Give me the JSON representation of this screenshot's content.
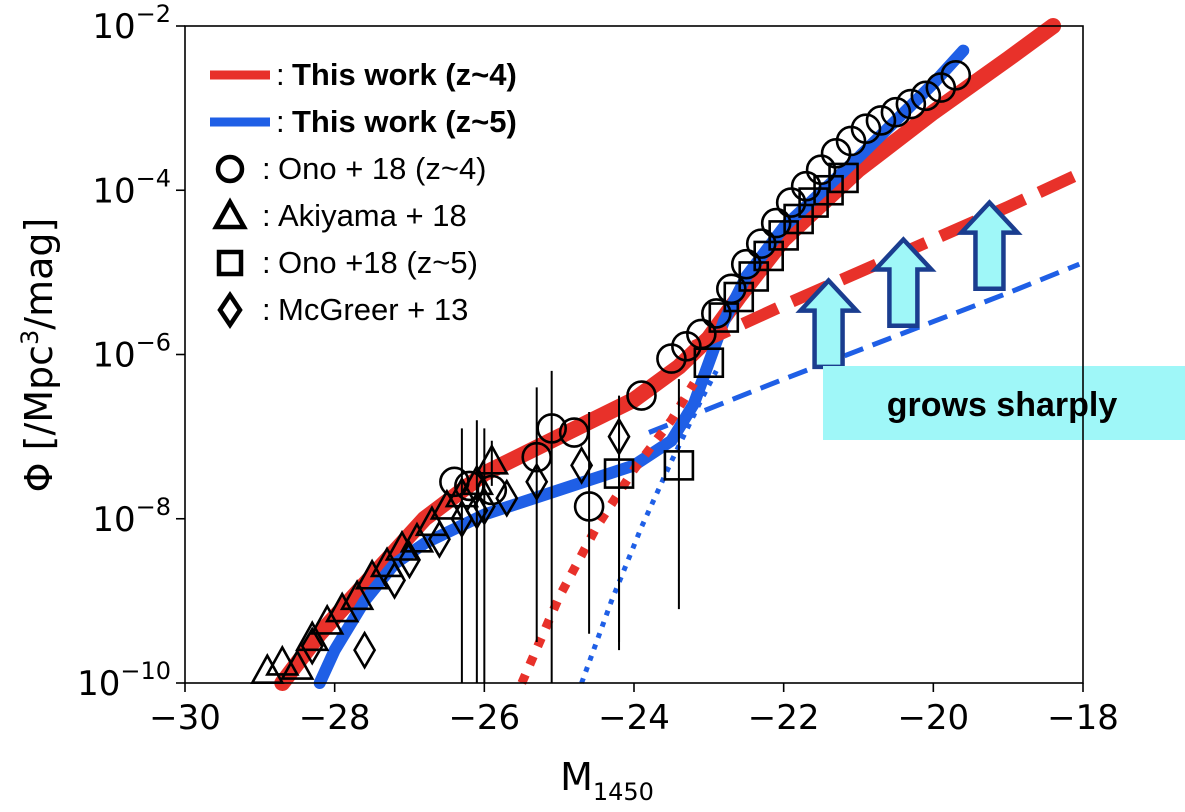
{
  "chart_data": {
    "type": "scatter",
    "title": "",
    "xlabel": {
      "main": "M",
      "sub": "1450"
    },
    "ylabel": {
      "pre": "Φ [/Mpc",
      "sup": "3",
      "post": "/mag]"
    },
    "xlim": [
      -30,
      -18
    ],
    "ylim_log10": [
      -10,
      -2
    ],
    "y_scale": "log",
    "x_ticks": [
      {
        "v": -30,
        "label": "−30"
      },
      {
        "v": -28,
        "label": "−28"
      },
      {
        "v": -26,
        "label": "−26"
      },
      {
        "v": -24,
        "label": "−24"
      },
      {
        "v": -22,
        "label": "−22"
      },
      {
        "v": -20,
        "label": "−20"
      },
      {
        "v": -18,
        "label": "−18"
      }
    ],
    "y_ticks": [
      {
        "v": -10,
        "base": "10",
        "exp": "−10"
      },
      {
        "v": -8,
        "base": "10",
        "exp": "−8"
      },
      {
        "v": -6,
        "base": "10",
        "exp": "−6"
      },
      {
        "v": -4,
        "base": "10",
        "exp": "−4"
      },
      {
        "v": -2,
        "base": "10",
        "exp": "−2"
      }
    ],
    "grid": false,
    "legend_position": "top-left",
    "legend": [
      {
        "marker": "red-line",
        "sep": ":",
        "label": "This work (z~4)",
        "bold": true
      },
      {
        "marker": "blue-line",
        "sep": ":",
        "label": "This work (z~5)",
        "bold": true
      },
      {
        "marker": "circle",
        "sep": ":",
        "label": "Ono + 18 (z~4)",
        "bold": false
      },
      {
        "marker": "triangle",
        "sep": ":",
        "label": "Akiyama + 18",
        "bold": false
      },
      {
        "marker": "square",
        "sep": ":",
        "label": "Ono +18 (z~5)",
        "bold": false
      },
      {
        "marker": "diamond",
        "sep": ":",
        "label": "McGreer + 13",
        "bold": false
      }
    ],
    "lines": [
      {
        "id": "z4-total",
        "color": "#e8312a",
        "style": "solid",
        "width": 16,
        "x": [
          -28.7,
          -28.2,
          -27.5,
          -26.8,
          -26.0,
          -25.0,
          -24.0,
          -23.4,
          -23.0,
          -22.6,
          -22.0,
          -21.0,
          -20.0,
          -19.0,
          -18.4
        ],
        "log_phi": [
          -10.0,
          -9.4,
          -8.7,
          -8.0,
          -7.45,
          -7.0,
          -6.55,
          -6.15,
          -5.8,
          -5.3,
          -4.6,
          -3.75,
          -3.05,
          -2.4,
          -2.0
        ]
      },
      {
        "id": "z5-total",
        "color": "#1f5fe6",
        "style": "solid",
        "width": 12,
        "x": [
          -28.2,
          -28.0,
          -27.6,
          -27.2,
          -26.8,
          -26.0,
          -25.0,
          -24.0,
          -23.5,
          -23.2,
          -23.0,
          -22.8,
          -22.5,
          -22.0,
          -21.0,
          -20.0,
          -19.6
        ],
        "log_phi": [
          -10.0,
          -9.6,
          -9.0,
          -8.55,
          -8.3,
          -7.95,
          -7.65,
          -7.35,
          -7.05,
          -6.6,
          -6.1,
          -5.6,
          -5.05,
          -4.45,
          -3.6,
          -2.7,
          -2.3
        ]
      },
      {
        "id": "z4-faint-dashed",
        "color": "#e8312a",
        "style": "dashed",
        "width": 12,
        "x": [
          -23.2,
          -22.0,
          -21.0,
          -20.0,
          -19.0,
          -18.05
        ],
        "log_phi": [
          -5.9,
          -5.4,
          -5.0,
          -4.6,
          -4.2,
          -3.8
        ]
      },
      {
        "id": "z5-faint-dashed",
        "color": "#1f5fe6",
        "style": "dashed",
        "width": 5,
        "x": [
          -23.8,
          -22.0,
          -21.0,
          -20.0,
          -19.0,
          -18.05
        ],
        "log_phi": [
          -6.95,
          -6.3,
          -5.95,
          -5.6,
          -5.25,
          -4.9
        ]
      },
      {
        "id": "z4-bright-dotted",
        "color": "#e8312a",
        "style": "dotted",
        "width": 9,
        "x": [
          -25.5,
          -25.0,
          -24.5,
          -24.0,
          -23.5,
          -23.2
        ],
        "log_phi": [
          -10.0,
          -8.95,
          -8.1,
          -7.4,
          -6.8,
          -6.35
        ]
      },
      {
        "id": "z5-bright-dotted",
        "color": "#1f5fe6",
        "style": "dotted",
        "width": 5,
        "x": [
          -24.7,
          -24.3,
          -23.9,
          -23.5,
          -23.1,
          -22.9
        ],
        "log_phi": [
          -10.0,
          -9.0,
          -8.1,
          -7.3,
          -6.55,
          -6.2
        ]
      }
    ],
    "series": [
      {
        "name": "Ono + 18 (z~4)",
        "marker": "circle",
        "x": [
          -26.4,
          -26.2,
          -25.9,
          -25.3,
          -25.1,
          -24.8,
          -24.6,
          -23.9,
          -23.5,
          -23.3,
          -23.1,
          -22.9,
          -22.7,
          -22.5,
          -22.3,
          -22.1,
          -21.9,
          -21.7,
          -21.5,
          -21.3,
          -21.1,
          -20.9,
          -20.7,
          -20.5,
          -20.3,
          -20.1,
          -19.9,
          -19.7
        ],
        "log_phi": [
          -7.55,
          -7.6,
          -7.65,
          -7.25,
          -6.9,
          -6.95,
          -7.85,
          -6.5,
          -6.05,
          -5.9,
          -5.75,
          -5.5,
          -5.2,
          -4.9,
          -4.65,
          -4.4,
          -4.15,
          -3.95,
          -3.75,
          -3.55,
          -3.4,
          -3.25,
          -3.15,
          -3.05,
          -2.95,
          -2.85,
          -2.75,
          -2.6
        ],
        "errbar_lo": [
          null,
          null,
          null,
          -9.5,
          -10.0,
          null,
          -9.4,
          null,
          null,
          null,
          null,
          null,
          null,
          null,
          null,
          null,
          null,
          null,
          null,
          null,
          null,
          null,
          null,
          null,
          null,
          null,
          null,
          null
        ],
        "errbar_hi": [
          null,
          null,
          null,
          -6.4,
          -6.2,
          null,
          -6.7,
          null,
          null,
          null,
          null,
          null,
          null,
          null,
          null,
          null,
          null,
          null,
          null,
          null,
          null,
          null,
          null,
          null,
          null,
          null,
          null,
          null
        ]
      },
      {
        "name": "Akiyama + 18",
        "marker": "triangle",
        "x": [
          -28.9,
          -28.7,
          -28.5,
          -28.3,
          -28.1,
          -27.9,
          -27.7,
          -27.5,
          -27.3,
          -27.1,
          -26.9,
          -26.7,
          -26.5,
          -26.3,
          -26.1,
          -25.9
        ],
        "log_phi": [
          -9.85,
          -9.75,
          -9.8,
          -9.45,
          -9.25,
          -9.1,
          -8.95,
          -8.7,
          -8.55,
          -8.35,
          -8.25,
          -8.05,
          -7.85,
          -7.7,
          -7.55,
          -7.3
        ],
        "errbar_lo": [
          null,
          null,
          null,
          null,
          null,
          null,
          null,
          null,
          null,
          null,
          null,
          null,
          null,
          null,
          null,
          -7.6
        ],
        "errbar_hi": [
          null,
          null,
          null,
          null,
          null,
          null,
          null,
          null,
          null,
          null,
          null,
          null,
          null,
          null,
          null,
          -7.05
        ]
      },
      {
        "name": "Ono +18 (z~5)",
        "marker": "square",
        "x": [
          -24.2,
          -23.4,
          -23.0,
          -22.8,
          -22.6,
          -22.4,
          -22.2,
          -22.0,
          -21.8,
          -21.6,
          -21.4,
          -21.2
        ],
        "log_phi": [
          -7.45,
          -7.35,
          -6.1,
          -5.55,
          -5.3,
          -5.05,
          -4.8,
          -4.55,
          -4.35,
          -4.15,
          -4.0,
          -3.85
        ],
        "errbar_lo": [
          -9.5,
          -9.1,
          null,
          null,
          null,
          null,
          null,
          null,
          null,
          null,
          null,
          null
        ],
        "errbar_hi": [
          -6.5,
          -6.3,
          null,
          null,
          null,
          null,
          null,
          null,
          null,
          null,
          null,
          null
        ]
      },
      {
        "name": "McGreer + 13",
        "marker": "diamond",
        "x": [
          -28.3,
          -27.6,
          -27.2,
          -27.0,
          -26.6,
          -26.3,
          -26.1,
          -26.0,
          -25.7,
          -25.3,
          -24.7,
          -24.2
        ],
        "log_phi": [
          -9.55,
          -9.6,
          -8.75,
          -8.5,
          -8.25,
          -8.0,
          -7.9,
          -7.85,
          -7.75,
          -7.55,
          -7.35,
          -7.0
        ],
        "errbar_lo": [
          null,
          null,
          null,
          null,
          null,
          -10.0,
          -10.0,
          -10.0,
          null,
          null,
          null,
          -9.6
        ],
        "errbar_hi": [
          null,
          null,
          null,
          null,
          null,
          -6.9,
          -6.8,
          -6.9,
          null,
          null,
          null,
          -6.6
        ]
      }
    ],
    "annotations": [
      {
        "text": "grows sharply",
        "box_color": "#9ff7f8"
      }
    ],
    "arrows": [
      {
        "x": -21.4,
        "log_phi_from": -6.15,
        "log_phi_to": -5.1,
        "fill": "#9ff7f8",
        "edge": "#1a3d8f"
      },
      {
        "x": -20.4,
        "log_phi_from": -5.65,
        "log_phi_to": -4.6,
        "fill": "#9ff7f8",
        "edge": "#1a3d8f"
      },
      {
        "x": -19.25,
        "log_phi_from": -5.2,
        "log_phi_to": -4.15,
        "fill": "#9ff7f8",
        "edge": "#1a3d8f"
      }
    ]
  }
}
